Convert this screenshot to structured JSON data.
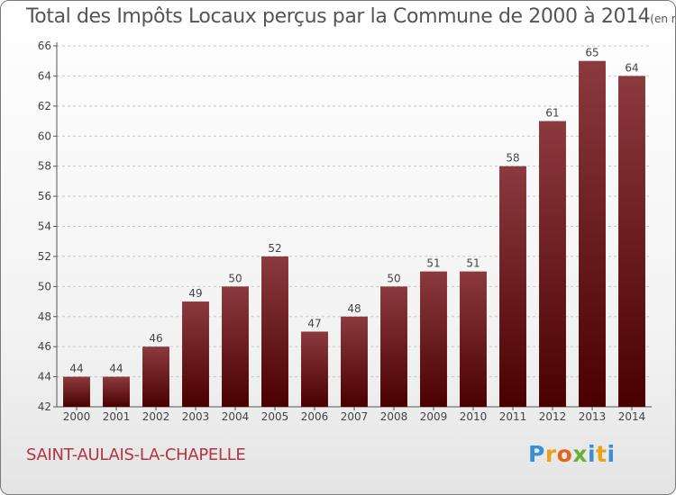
{
  "chart_data": {
    "type": "bar",
    "title": "Total des Impôts Locaux perçus par la Commune de 2000 à 2014",
    "unit_label": "(en milliers d'€)",
    "categories": [
      "2000",
      "2001",
      "2002",
      "2003",
      "2004",
      "2005",
      "2006",
      "2007",
      "2008",
      "2009",
      "2010",
      "2011",
      "2012",
      "2013",
      "2014"
    ],
    "values": [
      44,
      44,
      46,
      49,
      50,
      52,
      47,
      48,
      50,
      51,
      51,
      58,
      61,
      65,
      64
    ],
    "ylim": [
      42,
      66
    ],
    "yticks": [
      42,
      44,
      46,
      48,
      50,
      52,
      54,
      56,
      58,
      60,
      62,
      64,
      66
    ],
    "xlabel": "",
    "ylabel": "",
    "grid": "horizontal dashed",
    "bar_color_top": "#8b3a3e",
    "bar_color_bottom": "#4a0000"
  },
  "footer": {
    "commune": "SAINT-AULAIS-LA-CHAPELLE",
    "logo_letters": [
      "P",
      "r",
      "o",
      "x",
      "i",
      "t",
      "i"
    ]
  }
}
